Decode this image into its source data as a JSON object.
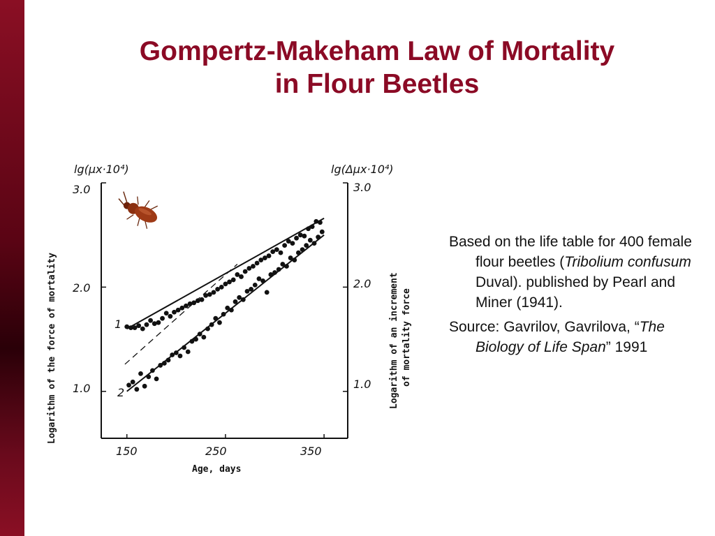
{
  "slide": {
    "title_line1": "Gompertz-Makeham Law of Mortality",
    "title_line2": "in Flour Beetles",
    "note_1_a": "Based on the life table for 400 female flour beetles (",
    "note_1_species": "Tribolium confusum",
    "note_1_b": " Duval). published by Pearl and Miner (1941).",
    "note_2_a": "Source: Gavrilov, Gavrilova, “",
    "note_2_book": "The Biology of Life Span",
    "note_2_b": "” 1991"
  },
  "colors": {
    "title": "#8b0a25",
    "sidebar": "#6a0a1c",
    "beetle": "#8b3010"
  },
  "icons": {
    "beetle": "flour-beetle-photo"
  },
  "chart_data": {
    "type": "scatter",
    "left_axis_header": "lg(μx·10⁴)",
    "right_axis_header": "lg(Δμx·10⁴)",
    "ylabel": "Logarithm of the force of mortality",
    "ylabel_right_line1": "Logarithm of an increment",
    "ylabel_right_line2": "of mortality force",
    "xlabel": "Age, days",
    "x_ticks": [
      "150",
      "250",
      "350"
    ],
    "y_ticks": [
      "3.0",
      "2.0",
      "1.0"
    ],
    "xlim": [
      124,
      374
    ],
    "ylim": [
      0.55,
      3.0
    ],
    "series": [
      {
        "name": "1",
        "x": [
          150,
          154,
          158,
          162,
          166,
          170,
          174,
          178,
          182,
          186,
          190,
          194,
          198,
          202,
          206,
          210,
          214,
          218,
          222,
          226,
          230,
          234,
          238,
          242,
          246,
          250,
          254,
          258,
          262,
          266,
          270,
          274,
          278,
          282,
          286,
          290,
          294,
          298,
          302,
          306,
          310,
          314,
          318,
          322,
          326,
          330,
          334,
          338,
          342,
          346
        ],
        "y": [
          1.62,
          1.61,
          1.61,
          1.63,
          1.6,
          1.64,
          1.68,
          1.65,
          1.66,
          1.7,
          1.75,
          1.72,
          1.76,
          1.78,
          1.8,
          1.82,
          1.84,
          1.85,
          1.87,
          1.88,
          1.92,
          1.93,
          1.95,
          1.98,
          2.0,
          2.03,
          2.05,
          2.07,
          2.12,
          2.1,
          2.15,
          2.18,
          2.2,
          2.23,
          2.26,
          2.28,
          2.3,
          2.34,
          2.36,
          2.33,
          2.4,
          2.44,
          2.42,
          2.47,
          2.5,
          2.49,
          2.56,
          2.58,
          2.63,
          2.62
        ],
        "fit": [
          [
            150,
            1.6
          ],
          [
            350,
            2.66
          ]
        ],
        "baseline": [
          [
            148,
            1.26
          ],
          [
            262,
            2.22
          ]
        ]
      },
      {
        "name": "2",
        "x": [
          152,
          156,
          160,
          164,
          168,
          172,
          176,
          180,
          184,
          188,
          192,
          196,
          200,
          204,
          208,
          212,
          216,
          220,
          224,
          228,
          232,
          236,
          240,
          244,
          248,
          252,
          256,
          260,
          264,
          268,
          272,
          276,
          280,
          284,
          288,
          292,
          296,
          300,
          304,
          308,
          312,
          316,
          320,
          324,
          328,
          332,
          336,
          340,
          344,
          348
        ],
        "y": [
          1.06,
          1.09,
          1.02,
          1.17,
          1.05,
          1.14,
          1.2,
          1.12,
          1.25,
          1.27,
          1.3,
          1.35,
          1.37,
          1.34,
          1.42,
          1.38,
          1.48,
          1.5,
          1.55,
          1.52,
          1.6,
          1.64,
          1.7,
          1.66,
          1.74,
          1.8,
          1.78,
          1.86,
          1.9,
          1.88,
          1.96,
          1.98,
          2.02,
          2.08,
          2.06,
          1.95,
          2.12,
          2.14,
          2.17,
          2.22,
          2.2,
          2.28,
          2.26,
          2.33,
          2.36,
          2.4,
          2.45,
          2.42,
          2.48,
          2.53
        ],
        "fit": [
          [
            150,
            1.0
          ],
          [
            350,
            2.5
          ]
        ]
      }
    ]
  }
}
